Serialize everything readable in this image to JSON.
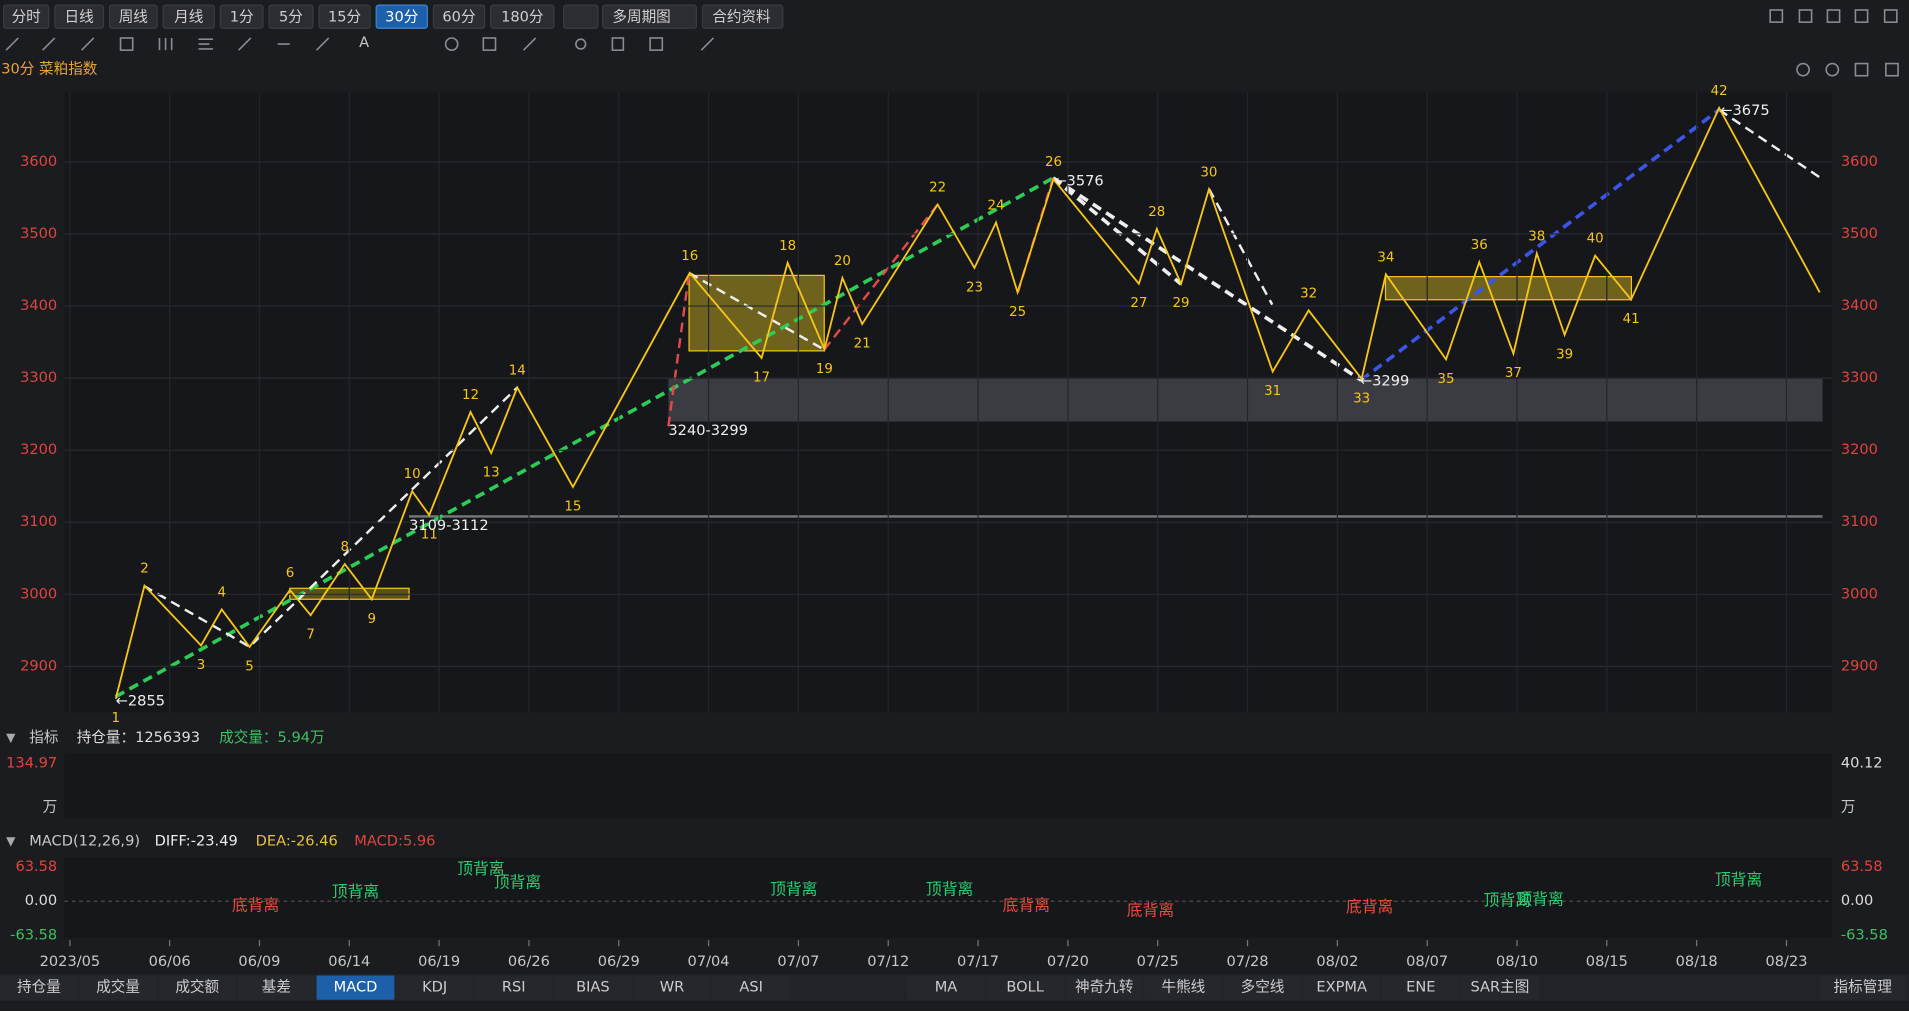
{
  "toolbar": {
    "periods": [
      "分时",
      "日线",
      "周线",
      "月线",
      "1分",
      "5分",
      "15分",
      "30分",
      "60分",
      "180分"
    ],
    "buttons": [
      "多周期图",
      "合约资料"
    ]
  },
  "chart_data": {
    "type": "line",
    "title": "30分 菜粕指数",
    "xticks": [
      {
        "value": -1.11,
        "label": "2023/05"
      },
      {
        "value": 0,
        "label": "06/06"
      },
      {
        "value": 1,
        "label": "06/09"
      },
      {
        "value": 2,
        "label": "06/14"
      },
      {
        "value": 3,
        "label": "06/19"
      },
      {
        "value": 4,
        "label": "06/26"
      },
      {
        "value": 5,
        "label": "06/29"
      },
      {
        "value": 6,
        "label": "07/04"
      },
      {
        "value": 7,
        "label": "07/07"
      },
      {
        "value": 8,
        "label": "07/12"
      },
      {
        "value": 9,
        "label": "07/17"
      },
      {
        "value": 10,
        "label": "07/20"
      },
      {
        "value": 11,
        "label": "07/25"
      },
      {
        "value": 12,
        "label": "07/28"
      },
      {
        "value": 13,
        "label": "08/02"
      },
      {
        "value": 14,
        "label": "08/07"
      },
      {
        "value": 15,
        "label": "08/10"
      },
      {
        "value": 16,
        "label": "08/15"
      },
      {
        "value": 17,
        "label": "08/18"
      },
      {
        "value": 18,
        "label": "08/23"
      }
    ],
    "xlim": [
      -1.17,
      18.51
    ],
    "ylim": [
      2836,
      3696
    ],
    "yticks": [
      2900,
      3000,
      3100,
      3200,
      3300,
      3400,
      3500,
      3600
    ],
    "grid": true,
    "series": [
      {
        "color": "#f5c518",
        "x": [
          -0.6,
          -0.28,
          0.35,
          0.58,
          0.89,
          1.34,
          1.57,
          1.95,
          2.25,
          2.7,
          2.89,
          3.35,
          3.58,
          3.87,
          4.49,
          5.79,
          6.59,
          6.88,
          7.29,
          7.49,
          7.71,
          8.55,
          8.96,
          9.2,
          9.44,
          9.84,
          10.79,
          10.99,
          11.26,
          11.57,
          12.28,
          12.68,
          13.27,
          13.54,
          14.21,
          14.58,
          14.96,
          15.22,
          15.53,
          15.87,
          16.27,
          17.25,
          18.37
        ],
        "values": [
          2855,
          3012,
          2929,
          2979,
          2927,
          3006,
          2971,
          3042,
          2993,
          3143,
          3110,
          3253,
          3196,
          3287,
          3149,
          3446,
          3328,
          3460,
          3340,
          3439,
          3375,
          3541,
          3453,
          3516,
          3419,
          3576,
          3431,
          3507,
          3431,
          3562,
          3309,
          3394,
          3299,
          3444,
          3326,
          3461,
          3334,
          3473,
          3360,
          3470,
          3409,
          3675,
          3419
        ],
        "wave_labels": [
          "1",
          "2",
          "3",
          "4",
          "5",
          "6",
          "7",
          "8",
          "9",
          "10",
          "11",
          "12",
          "13",
          "14",
          "15",
          "16",
          "17",
          "18",
          "19",
          "20",
          "21",
          "22",
          "23",
          "24",
          "25",
          "26",
          "27",
          "28",
          "29",
          "30",
          "31",
          "32",
          "33",
          "34",
          "35",
          "36",
          "37",
          "38",
          "39",
          "40",
          "41",
          "42",
          null
        ]
      }
    ],
    "annotations": [
      "←2855",
      "3109-3112",
      "3240-3299",
      "←3576",
      "←3299",
      "←3675"
    ]
  },
  "indicator_panel": {
    "title": "指标",
    "open_interest": "持仓量：1256393",
    "volume": "成交量：5.94万",
    "left_top": "134.97",
    "right_top": "40.12",
    "unit": "万"
  },
  "macd_panel": {
    "title": "MACD(12,26,9)",
    "diff": "DIFF:-23.49",
    "dea": "DEA:-26.46",
    "macd": "MACD:5.96",
    "axis": [
      "63.58",
      "0.00",
      "-63.58"
    ],
    "divergences": [
      "底背离",
      "顶背离",
      "顶背离",
      "顶背离",
      "顶背离",
      "顶背离",
      "底背离",
      "底背离",
      "底背离",
      "顶背离",
      "顶背离",
      "顶背离"
    ]
  },
  "tabs": {
    "left": [
      "持仓量",
      "成交量",
      "成交额",
      "基差",
      "MACD",
      "KDJ",
      "RSI",
      "BIAS",
      "WR",
      "ASI"
    ],
    "right": [
      "MA",
      "BOLL",
      "神奇九转",
      "牛熊线",
      "多空线",
      "EXPMA",
      "ENE",
      "SAR主图"
    ],
    "manage": "指标管理"
  }
}
